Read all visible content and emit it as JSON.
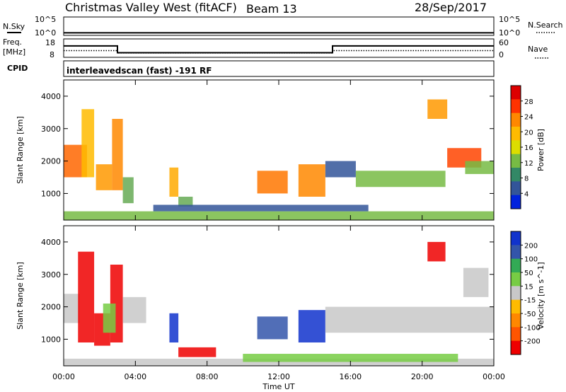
{
  "header": {
    "station": "Christmas Valley West (fitACF)",
    "beam": "Beam 13",
    "date": "28/Sep/2017"
  },
  "strips": {
    "nsky_label": "N.Sky",
    "nsearch_label": "N.Search",
    "nsky_ticks": [
      "10^5",
      "10^0"
    ],
    "nsearch_ticks": [
      "10^5",
      "10^0"
    ],
    "freq_label_1": "Freq.",
    "freq_label_2": "[MHz]",
    "freq_ticks": [
      "18",
      "8"
    ],
    "nave_label": "Nave",
    "nave_ticks": [
      "60",
      "0"
    ],
    "cpid_label": "CPID",
    "cpid_text": "interleavedscan (fast) -191 RF"
  },
  "chart_data": [
    {
      "type": "heatmap",
      "panel": "power",
      "ylabel": "Slant Range [km]",
      "xlabel": "",
      "x_ticks": [
        "00:00",
        "04:00",
        "08:00",
        "12:00",
        "16:00",
        "20:00",
        "00:00"
      ],
      "x_range_hours": [
        0,
        24
      ],
      "ylim": [
        180,
        4500
      ],
      "y_ticks": [
        1000,
        2000,
        3000,
        4000
      ],
      "colorbar_label": "Power [dB]",
      "colorbar_ticks": [
        "28",
        "24",
        "20",
        "16",
        "12",
        "8",
        "4"
      ],
      "colorbar_colors": [
        "#dd0000",
        "#ff3300",
        "#ff8800",
        "#ffbb00",
        "#dddd00",
        "#77bb44",
        "#338866",
        "#335599",
        "#0022dd"
      ],
      "blobs": [
        {
          "t0": 0.0,
          "t1": 1.3,
          "r0": 1500,
          "r1": 2500,
          "color": "#ff6600"
        },
        {
          "t0": 1.0,
          "t1": 1.7,
          "r0": 1500,
          "r1": 3600,
          "color": "#ffbb00"
        },
        {
          "t0": 1.8,
          "t1": 2.7,
          "r0": 1100,
          "r1": 1900,
          "color": "#ff9900"
        },
        {
          "t0": 2.7,
          "t1": 3.3,
          "r0": 1100,
          "r1": 3300,
          "color": "#ff8800"
        },
        {
          "t0": 3.3,
          "t1": 3.9,
          "r0": 700,
          "r1": 1500,
          "color": "#66aa55"
        },
        {
          "t0": 5.9,
          "t1": 6.4,
          "r0": 900,
          "r1": 1800,
          "color": "#ffaa00"
        },
        {
          "t0": 6.4,
          "t1": 7.2,
          "r0": 600,
          "r1": 900,
          "color": "#66aa55"
        },
        {
          "t0": 10.8,
          "t1": 12.5,
          "r0": 1000,
          "r1": 1700,
          "color": "#ff7700"
        },
        {
          "t0": 13.1,
          "t1": 14.6,
          "r0": 900,
          "r1": 1900,
          "color": "#ff8800"
        },
        {
          "t0": 14.6,
          "t1": 16.3,
          "r0": 1500,
          "r1": 2000,
          "color": "#335599"
        },
        {
          "t0": 16.3,
          "t1": 21.3,
          "r0": 1200,
          "r1": 1700,
          "color": "#77bb44"
        },
        {
          "t0": 20.3,
          "t1": 21.4,
          "r0": 3300,
          "r1": 3900,
          "color": "#ff9900"
        },
        {
          "t0": 21.4,
          "t1": 23.3,
          "r0": 1800,
          "r1": 2400,
          "color": "#ff4400"
        },
        {
          "t0": 22.4,
          "t1": 24.0,
          "r0": 1600,
          "r1": 2000,
          "color": "#77bb44"
        },
        {
          "t0": 0.0,
          "t1": 24.0,
          "r0": 180,
          "r1": 450,
          "color": "#77bb44"
        },
        {
          "t0": 5.0,
          "t1": 17.0,
          "r0": 450,
          "r1": 650,
          "color": "#335599"
        }
      ]
    },
    {
      "type": "heatmap",
      "panel": "velocity",
      "ylabel": "Slant Range [km]",
      "xlabel": "Time UT",
      "x_ticks": [
        "00:00",
        "04:00",
        "08:00",
        "12:00",
        "16:00",
        "20:00",
        "00:00"
      ],
      "x_range_hours": [
        0,
        24
      ],
      "ylim": [
        180,
        4500
      ],
      "y_ticks": [
        1000,
        2000,
        3000,
        4000
      ],
      "colorbar_label": "Velocity [m s^-1]",
      "colorbar_ticks": [
        "200",
        "100",
        "50",
        "15",
        "-15",
        "-50",
        "-100",
        "-200"
      ],
      "colorbar_colors": [
        "#1133cc",
        "#3355aa",
        "#33aa55",
        "#77cc44",
        "#c8c8c8",
        "#ffbb00",
        "#ff8800",
        "#ff5500",
        "#ee0000"
      ],
      "blobs": [
        {
          "t0": 0.0,
          "t1": 0.9,
          "r0": 1500,
          "r1": 2400,
          "color": "#c8c8c8"
        },
        {
          "t0": 0.8,
          "t1": 1.7,
          "r0": 900,
          "r1": 3700,
          "color": "#ee0000"
        },
        {
          "t0": 1.7,
          "t1": 2.6,
          "r0": 800,
          "r1": 1800,
          "color": "#ee0000"
        },
        {
          "t0": 2.6,
          "t1": 3.3,
          "r0": 900,
          "r1": 3300,
          "color": "#ee0000"
        },
        {
          "t0": 2.2,
          "t1": 2.9,
          "r0": 1200,
          "r1": 2100,
          "color": "#77cc44"
        },
        {
          "t0": 3.3,
          "t1": 4.6,
          "r0": 1500,
          "r1": 2300,
          "color": "#c8c8c8"
        },
        {
          "t0": 5.9,
          "t1": 6.4,
          "r0": 900,
          "r1": 1800,
          "color": "#1133cc"
        },
        {
          "t0": 6.4,
          "t1": 8.5,
          "r0": 450,
          "r1": 750,
          "color": "#ee0000"
        },
        {
          "t0": 10.8,
          "t1": 12.5,
          "r0": 1000,
          "r1": 1700,
          "color": "#3355aa"
        },
        {
          "t0": 13.1,
          "t1": 14.6,
          "r0": 900,
          "r1": 1900,
          "color": "#1133cc"
        },
        {
          "t0": 14.6,
          "t1": 24.0,
          "r0": 1200,
          "r1": 2000,
          "color": "#c8c8c8"
        },
        {
          "t0": 20.3,
          "t1": 21.3,
          "r0": 3400,
          "r1": 4000,
          "color": "#ee0000"
        },
        {
          "t0": 22.3,
          "t1": 23.7,
          "r0": 2300,
          "r1": 3200,
          "color": "#c8c8c8"
        },
        {
          "t0": 0.0,
          "t1": 24.0,
          "r0": 180,
          "r1": 400,
          "color": "#c8c8c8"
        },
        {
          "t0": 10.0,
          "t1": 22.0,
          "r0": 300,
          "r1": 550,
          "color": "#77cc44"
        }
      ]
    }
  ],
  "freq_series": {
    "name": "",
    "steps": [
      {
        "t0": 0.0,
        "t1": 3.0,
        "value": 14.2
      },
      {
        "t0": 3.0,
        "t1": 15.0,
        "value": 10.5
      },
      {
        "t0": 15.0,
        "t1": 24.0,
        "value": 14.2
      }
    ],
    "ylim": [
      8,
      18
    ]
  },
  "nave_series": {
    "steps": [
      {
        "t0": 0.0,
        "t1": 3.0,
        "value": 22
      },
      {
        "t0": 3.0,
        "t1": 15.0,
        "value": 14
      },
      {
        "t0": 15.0,
        "t1": 24.0,
        "value": 22
      }
    ],
    "ylim": [
      0,
      60
    ]
  },
  "nsky_series": {
    "level_log10": 0.7,
    "ylim_log10": [
      0,
      5
    ]
  }
}
